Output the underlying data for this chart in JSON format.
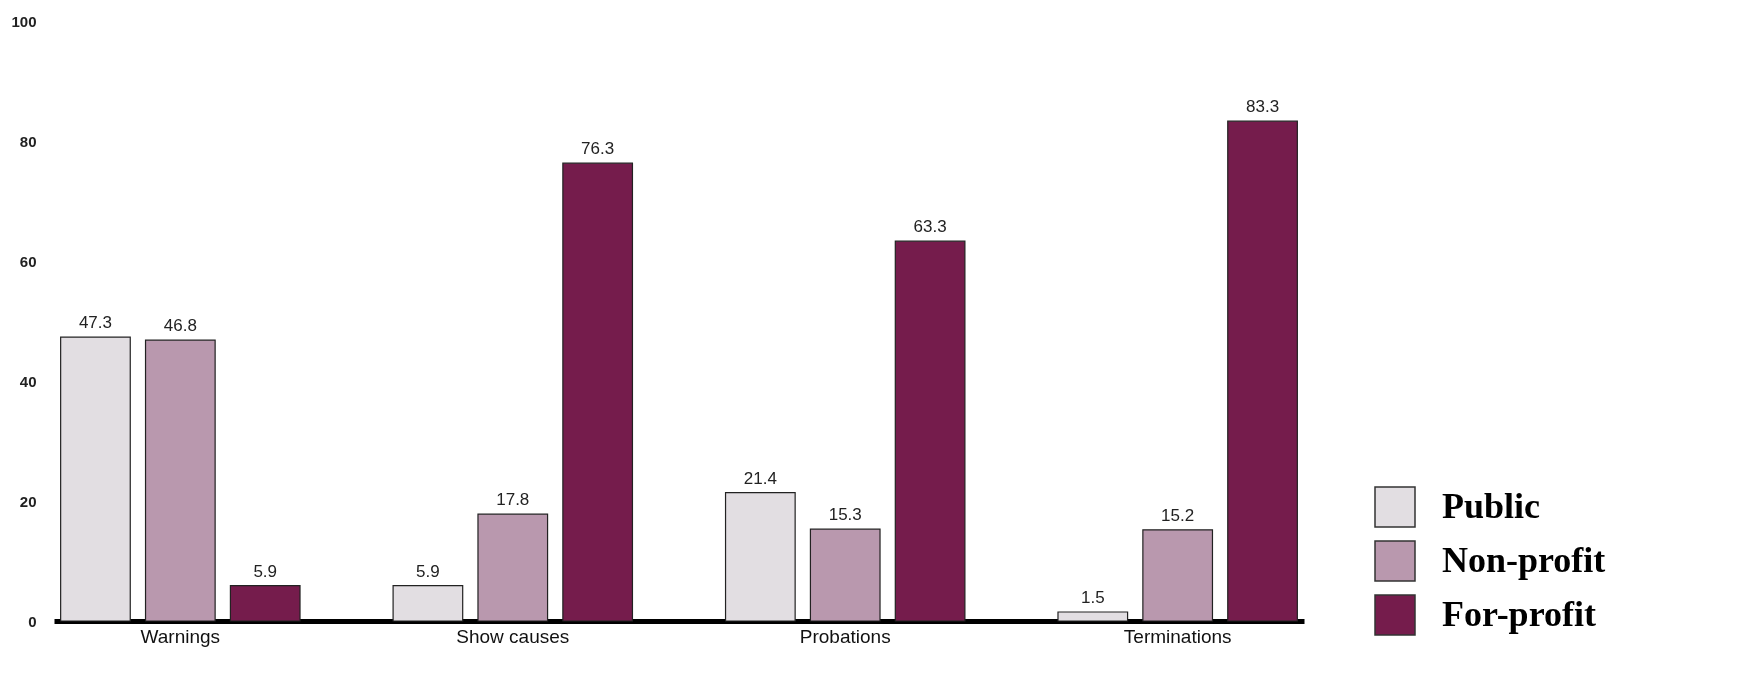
{
  "chart_data": {
    "type": "bar",
    "categories": [
      "Warnings",
      "Show causes",
      "Probations",
      "Terminations"
    ],
    "series": [
      {
        "name": "Public",
        "color": "#e2dee2",
        "values": [
          47.3,
          5.9,
          21.4,
          1.5
        ]
      },
      {
        "name": "Non-profit",
        "color": "#b998ae",
        "values": [
          46.8,
          17.8,
          15.3,
          15.2
        ]
      },
      {
        "name": "For-profit",
        "color": "#751c4c",
        "values": [
          5.9,
          76.3,
          63.3,
          83.3
        ]
      }
    ],
    "ylim": [
      0,
      100
    ],
    "yticks": [
      0,
      20,
      40,
      60,
      80,
      100
    ],
    "grid": false,
    "legend": "bottom right",
    "data_labels": true
  }
}
